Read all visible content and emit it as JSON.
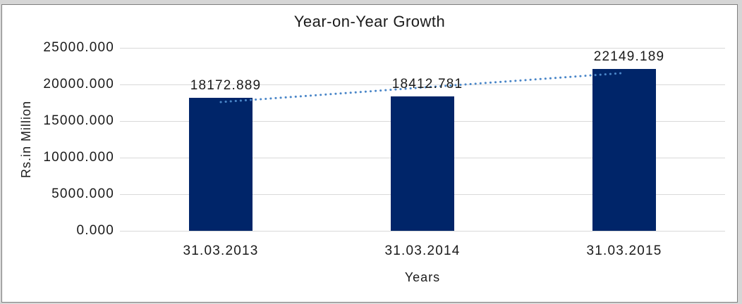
{
  "chart_data": {
    "type": "bar",
    "title": "Year-on-Year Growth",
    "categories": [
      "31.03.2013",
      "31.03.2014",
      "31.03.2015"
    ],
    "values": [
      18172.889,
      18412.781,
      22149.189
    ],
    "data_labels": [
      "18172.889",
      "18412.781",
      "22149.189"
    ],
    "xlabel": "Years",
    "ylabel": "Rs.in Million",
    "ylim": [
      0,
      25000
    ],
    "ytick_interval": 5000,
    "ytick_labels": [
      "0.000",
      "5000.000",
      "10000.000",
      "15000.000",
      "20000.000",
      "25000.000"
    ],
    "grid": "horizontal",
    "legend": "none",
    "bar_color": "#002569",
    "grid_color": "#d9d9d9",
    "border_color": "#7f7f7f",
    "text_color": "#1a1a1a",
    "trendline": {
      "type": "linear",
      "style": "dotted",
      "color": "#4a86c8",
      "fit_of": "values"
    }
  }
}
